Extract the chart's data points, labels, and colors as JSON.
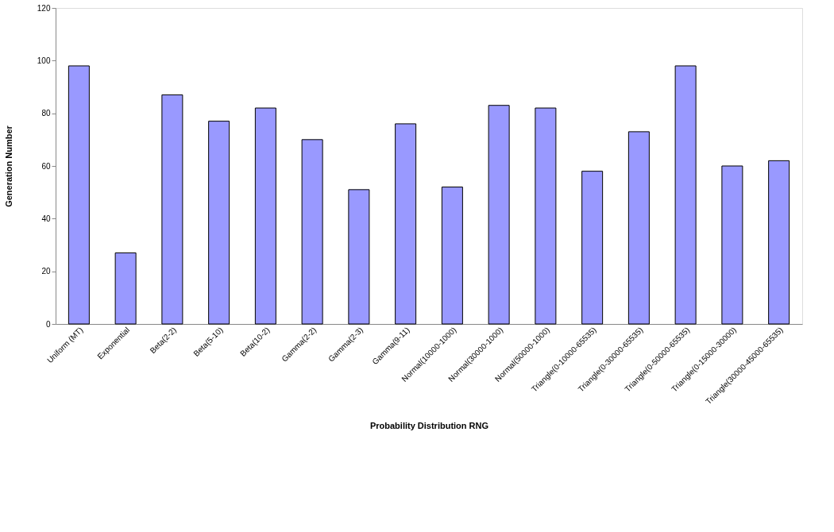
{
  "chart_data": {
    "type": "bar",
    "xlabel": "Probability Distribution RNG",
    "ylabel": "Generation Number",
    "categories": [
      "Uniform (MT)",
      "Exponential",
      "Beta(2-2)",
      "Beta(5-10)",
      "Beta(10-2)",
      "Gamma(2-2)",
      "Gamma(2-3)",
      "Gamma(9-11)",
      "Normal(10000-1000)",
      "Normal(30000-1000)",
      "Normal(50000-1000)",
      "Triangle(0-10000-65535)",
      "Triangle(0-30000-65535)",
      "Triangle(0-50000-65535)",
      "Triangle(0-15000-30000)",
      "Triangle(30000-45000-65535)"
    ],
    "values": [
      98,
      27,
      87,
      77,
      82,
      70,
      51,
      76,
      52,
      83,
      82,
      58,
      73,
      98,
      60,
      62
    ],
    "color": "#9999ff",
    "ylim": [
      0,
      120
    ],
    "yticks": [
      0,
      20,
      40,
      60,
      80,
      100,
      120
    ],
    "grid": false
  }
}
